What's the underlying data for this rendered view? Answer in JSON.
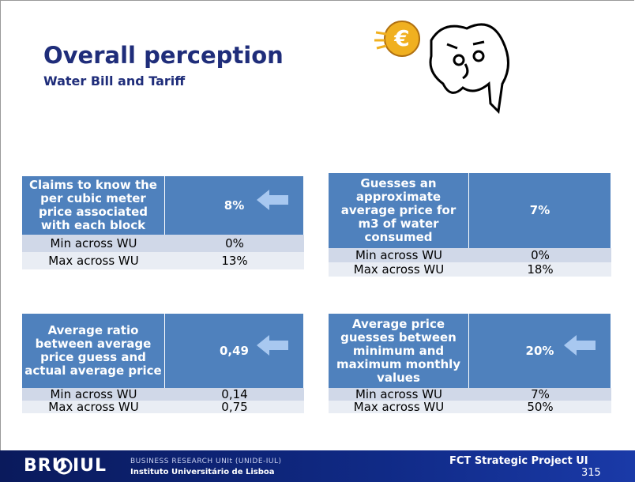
{
  "header": {
    "title": "Overall perception",
    "subtitle": "Water Bill and Tariff"
  },
  "tables": [
    {
      "label": "Claims to know the per cubic meter price associated with each block",
      "value": "8%",
      "arrow": true,
      "rows": [
        [
          "Min across WU",
          "0%"
        ],
        [
          "Max across WU",
          "13%"
        ]
      ]
    },
    {
      "label": "Guesses an approximate average price for m3 of water consumed",
      "value": "7%",
      "arrow": false,
      "rows": [
        [
          "Min across WU",
          "0%"
        ],
        [
          "Max across WU",
          "18%"
        ]
      ]
    },
    {
      "label": "Average ratio between average price guess and actual average price",
      "value": "0,49",
      "arrow": true,
      "rows": [
        [
          "Min across WU",
          "0,14"
        ],
        [
          "Max across WU",
          "0,75"
        ]
      ]
    },
    {
      "label": "Average price guesses between minimum and maximum monthly values",
      "value": "20%",
      "arrow": true,
      "rows": [
        [
          "Min across WU",
          "7%"
        ],
        [
          "Max across WU",
          "50%"
        ]
      ]
    }
  ],
  "footer": {
    "logo_left": "BRU",
    "logo_right": "IUL",
    "unit": "BUSINESS RESEARCH UNIt (UNIDE-IUL)",
    "institution": "Instituto Universitário de Lisboa",
    "project": "FCT Strategic Project UI",
    "project_number": "315"
  }
}
